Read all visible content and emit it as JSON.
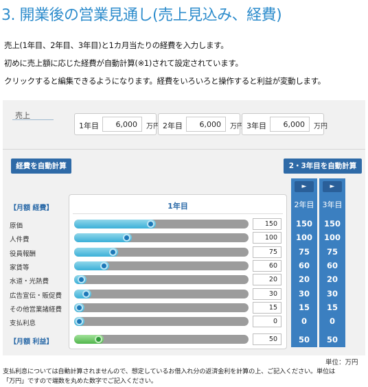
{
  "title": "3. 開業後の営業見通し(売上見込み、経費)",
  "intro": [
    "売上(1年目、2年目、3年目)と1カ月当たりの経費を入力します。",
    "初めに売上額に応じた経費が自動計算(※1)されて設定されています。",
    "クリックすると編集できるようになります。経費をいろいろと操作すると利益が変動します。"
  ],
  "sales": {
    "label": "売上",
    "years": [
      {
        "label": "1年目",
        "value": "6,000",
        "unit": "万円"
      },
      {
        "label": "2年目",
        "value": "6,000",
        "unit": "万円"
      },
      {
        "label": "3年目",
        "value": "6,000",
        "unit": "万円"
      }
    ]
  },
  "buttons": {
    "auto_calc": "経費を自動計算",
    "auto_calc_23": "2・3年目を自動計算"
  },
  "table": {
    "expense_header": "【月額 経費】",
    "profit_header": "【月額 利益】",
    "year1_title": "1年目",
    "year2_title": "2年目",
    "year3_title": "3年目",
    "arrow": "►",
    "rows": [
      {
        "label": "原価",
        "y1": 150,
        "y2": "150",
        "y3": "150",
        "fill": 0.47
      },
      {
        "label": "人件費",
        "y1": 100,
        "y2": "100",
        "y3": "100",
        "fill": 0.33
      },
      {
        "label": "役員報酬",
        "y1": 75,
        "y2": "75",
        "y3": "75",
        "fill": 0.25
      },
      {
        "label": "家賃等",
        "y1": 60,
        "y2": "60",
        "y3": "60",
        "fill": 0.2
      },
      {
        "label": "水道・光熱費",
        "y1": 20,
        "y2": "20",
        "y3": "20",
        "fill": 0.07
      },
      {
        "label": "広告宣伝・販促費",
        "y1": 30,
        "y2": "30",
        "y3": "30",
        "fill": 0.1
      },
      {
        "label": "その他営業諸経費",
        "y1": 15,
        "y2": "15",
        "y3": "15",
        "fill": 0.05
      },
      {
        "label": "支払利息",
        "y1": 0,
        "y2": "0",
        "y3": "0",
        "fill": 0.0
      }
    ],
    "profit": {
      "y1": 50,
      "y2": "50",
      "y3": "50",
      "fill": 0.17
    }
  },
  "unit_note": "単位：万円",
  "notes": [
    "支払利息については自動計算されませんので、想定しているお借入れ分の返済金利を計算の上、ご記入ください。単位は",
    "「万円」ですので端数を丸めた数字でご記入ください。"
  ],
  "colors": {
    "accent": "#2d8ccc",
    "button": "#2e6aa7",
    "column": "#3b7fc0",
    "slider_fill": "#3bb0d8",
    "profit_fill": "#4fb54b"
  }
}
